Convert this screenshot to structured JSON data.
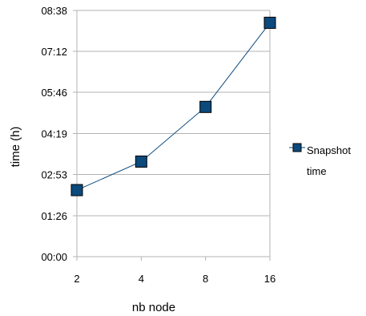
{
  "chart_data": {
    "type": "line",
    "title": "",
    "xlabel": "nb node",
    "ylabel": "time (h)",
    "categories": [
      "2",
      "4",
      "8",
      "16"
    ],
    "series": [
      {
        "name": "Snapshot time",
        "legend_lines": [
          "Snapshot",
          "time"
        ],
        "values": [
          "02:20",
          "03:20",
          "05:15",
          "08:12"
        ],
        "color": "#0b4a7d"
      }
    ],
    "y_ticks": [
      "00:00",
      "01:26",
      "02:53",
      "04:19",
      "05:46",
      "07:12",
      "08:38"
    ],
    "ylim": [
      "00:00",
      "08:38"
    ],
    "grid": true,
    "legend_position": "right"
  }
}
